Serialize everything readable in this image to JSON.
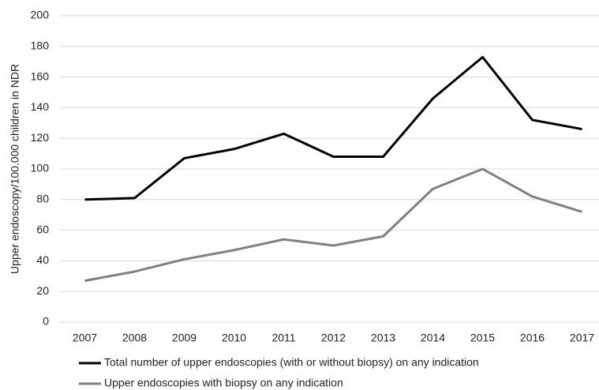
{
  "chart_data": {
    "type": "line",
    "y_label": "Upper endoscopy/100.000 children in NDR",
    "categories": [
      "2007",
      "2008",
      "2009",
      "2010",
      "2011",
      "2012",
      "2013",
      "2014",
      "2015",
      "2016",
      "2017"
    ],
    "series": [
      {
        "name": "Total number of upper endoscopies (with or without biopsy) on any indication",
        "color": "#000000",
        "values": [
          80,
          81,
          107,
          113,
          123,
          108,
          108,
          146,
          173,
          132,
          126
        ]
      },
      {
        "name": "Upper endoscopies with biopsy on any indication",
        "color": "#808080",
        "values": [
          27,
          33,
          41,
          47,
          54,
          50,
          56,
          87,
          100,
          82,
          72
        ]
      }
    ],
    "ylim": [
      0,
      200
    ],
    "yticks": [
      0,
      20,
      40,
      60,
      80,
      100,
      120,
      140,
      160,
      180,
      200
    ],
    "grid": true
  }
}
